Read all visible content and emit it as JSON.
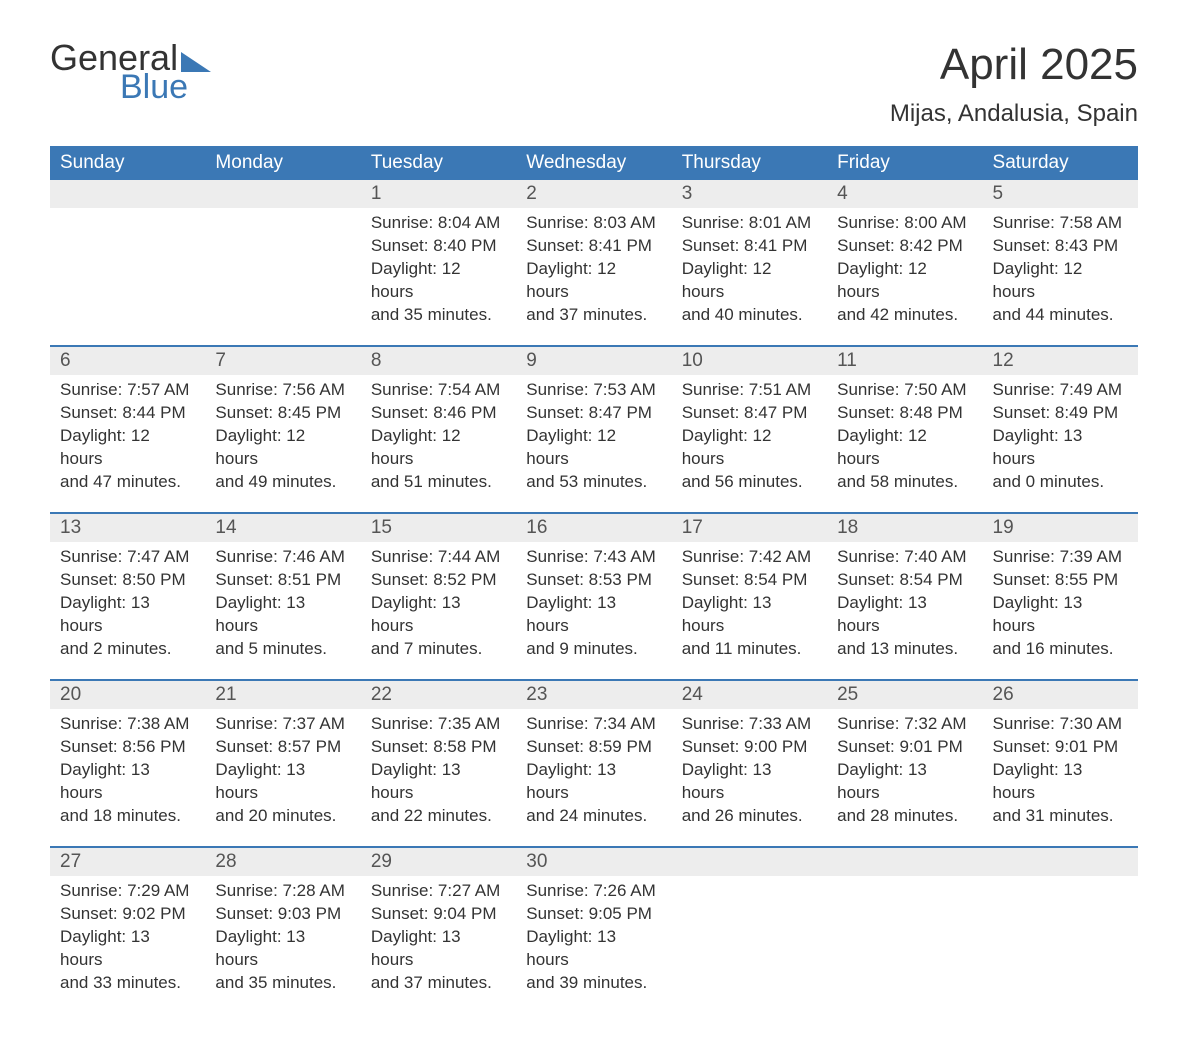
{
  "logo": {
    "word1": "General",
    "word2": "Blue"
  },
  "title": "April 2025",
  "location": "Mijas, Andalusia, Spain",
  "colors": {
    "header_bg": "#3b78b5",
    "header_text": "#ffffff",
    "daynum_bg": "#ededed",
    "body_text": "#333333",
    "page_bg": "#ffffff",
    "row_border": "#3b78b5"
  },
  "day_headers": [
    "Sunday",
    "Monday",
    "Tuesday",
    "Wednesday",
    "Thursday",
    "Friday",
    "Saturday"
  ],
  "weeks": [
    [
      null,
      null,
      {
        "n": "1",
        "sunrise": "8:04 AM",
        "sunset": "8:40 PM",
        "dl_h": "12",
        "dl_m": "35"
      },
      {
        "n": "2",
        "sunrise": "8:03 AM",
        "sunset": "8:41 PM",
        "dl_h": "12",
        "dl_m": "37"
      },
      {
        "n": "3",
        "sunrise": "8:01 AM",
        "sunset": "8:41 PM",
        "dl_h": "12",
        "dl_m": "40"
      },
      {
        "n": "4",
        "sunrise": "8:00 AM",
        "sunset": "8:42 PM",
        "dl_h": "12",
        "dl_m": "42"
      },
      {
        "n": "5",
        "sunrise": "7:58 AM",
        "sunset": "8:43 PM",
        "dl_h": "12",
        "dl_m": "44"
      }
    ],
    [
      {
        "n": "6",
        "sunrise": "7:57 AM",
        "sunset": "8:44 PM",
        "dl_h": "12",
        "dl_m": "47"
      },
      {
        "n": "7",
        "sunrise": "7:56 AM",
        "sunset": "8:45 PM",
        "dl_h": "12",
        "dl_m": "49"
      },
      {
        "n": "8",
        "sunrise": "7:54 AM",
        "sunset": "8:46 PM",
        "dl_h": "12",
        "dl_m": "51"
      },
      {
        "n": "9",
        "sunrise": "7:53 AM",
        "sunset": "8:47 PM",
        "dl_h": "12",
        "dl_m": "53"
      },
      {
        "n": "10",
        "sunrise": "7:51 AM",
        "sunset": "8:47 PM",
        "dl_h": "12",
        "dl_m": "56"
      },
      {
        "n": "11",
        "sunrise": "7:50 AM",
        "sunset": "8:48 PM",
        "dl_h": "12",
        "dl_m": "58"
      },
      {
        "n": "12",
        "sunrise": "7:49 AM",
        "sunset": "8:49 PM",
        "dl_h": "13",
        "dl_m": "0"
      }
    ],
    [
      {
        "n": "13",
        "sunrise": "7:47 AM",
        "sunset": "8:50 PM",
        "dl_h": "13",
        "dl_m": "2"
      },
      {
        "n": "14",
        "sunrise": "7:46 AM",
        "sunset": "8:51 PM",
        "dl_h": "13",
        "dl_m": "5"
      },
      {
        "n": "15",
        "sunrise": "7:44 AM",
        "sunset": "8:52 PM",
        "dl_h": "13",
        "dl_m": "7"
      },
      {
        "n": "16",
        "sunrise": "7:43 AM",
        "sunset": "8:53 PM",
        "dl_h": "13",
        "dl_m": "9"
      },
      {
        "n": "17",
        "sunrise": "7:42 AM",
        "sunset": "8:54 PM",
        "dl_h": "13",
        "dl_m": "11"
      },
      {
        "n": "18",
        "sunrise": "7:40 AM",
        "sunset": "8:54 PM",
        "dl_h": "13",
        "dl_m": "13"
      },
      {
        "n": "19",
        "sunrise": "7:39 AM",
        "sunset": "8:55 PM",
        "dl_h": "13",
        "dl_m": "16"
      }
    ],
    [
      {
        "n": "20",
        "sunrise": "7:38 AM",
        "sunset": "8:56 PM",
        "dl_h": "13",
        "dl_m": "18"
      },
      {
        "n": "21",
        "sunrise": "7:37 AM",
        "sunset": "8:57 PM",
        "dl_h": "13",
        "dl_m": "20"
      },
      {
        "n": "22",
        "sunrise": "7:35 AM",
        "sunset": "8:58 PM",
        "dl_h": "13",
        "dl_m": "22"
      },
      {
        "n": "23",
        "sunrise": "7:34 AM",
        "sunset": "8:59 PM",
        "dl_h": "13",
        "dl_m": "24"
      },
      {
        "n": "24",
        "sunrise": "7:33 AM",
        "sunset": "9:00 PM",
        "dl_h": "13",
        "dl_m": "26"
      },
      {
        "n": "25",
        "sunrise": "7:32 AM",
        "sunset": "9:01 PM",
        "dl_h": "13",
        "dl_m": "28"
      },
      {
        "n": "26",
        "sunrise": "7:30 AM",
        "sunset": "9:01 PM",
        "dl_h": "13",
        "dl_m": "31"
      }
    ],
    [
      {
        "n": "27",
        "sunrise": "7:29 AM",
        "sunset": "9:02 PM",
        "dl_h": "13",
        "dl_m": "33"
      },
      {
        "n": "28",
        "sunrise": "7:28 AM",
        "sunset": "9:03 PM",
        "dl_h": "13",
        "dl_m": "35"
      },
      {
        "n": "29",
        "sunrise": "7:27 AM",
        "sunset": "9:04 PM",
        "dl_h": "13",
        "dl_m": "37"
      },
      {
        "n": "30",
        "sunrise": "7:26 AM",
        "sunset": "9:05 PM",
        "dl_h": "13",
        "dl_m": "39"
      },
      null,
      null,
      null
    ]
  ],
  "labels": {
    "sunrise": "Sunrise: ",
    "sunset": "Sunset: ",
    "daylight1": "Daylight: ",
    "daylight2": " hours and ",
    "daylight3": " minutes."
  }
}
